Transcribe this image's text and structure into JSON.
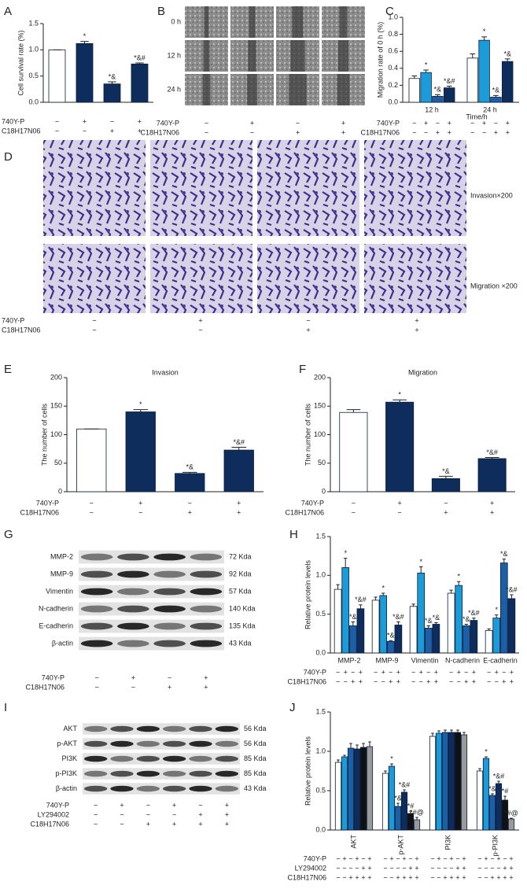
{
  "chart_data": [
    {
      "type": "bar",
      "panel": "A",
      "ylabel": "Cell survival rate (%)",
      "values": [
        1.0,
        1.12,
        0.35,
        0.73
      ],
      "errors": [
        0,
        0.04,
        0.04,
        0.02
      ],
      "colors": [
        "#ffffff",
        "#0e2d5c",
        "#0e2d5c",
        "#0e2d5c"
      ],
      "annotations": [
        null,
        "*",
        "*&",
        "*&#"
      ],
      "ylim": [
        0,
        1.5
      ],
      "yticks": [
        {
          "value": 0,
          "label": "0.0"
        },
        {
          "value": 0.5,
          "label": "0.5"
        },
        {
          "value": 1,
          "label": "1.0"
        },
        {
          "value": 1.5,
          "label": "1.5"
        }
      ],
      "conditions": [
        {
          "name": "740Y-P",
          "signs": [
            "−",
            "+",
            "−",
            "+"
          ]
        },
        {
          "name": "C18H17N06",
          "signs": [
            "−",
            "−",
            "+",
            "+"
          ]
        }
      ]
    },
    {
      "type": "bar",
      "panel": "C",
      "ylabel": "Migration rate of 0 h (%)",
      "xlabel": "Time/h",
      "categories": [
        "12 h",
        "24 h"
      ],
      "series": [
        {
          "color": "#ffffff",
          "values": [
            0.28,
            0.52
          ],
          "errors": [
            0.03,
            0.05
          ],
          "annotations": [
            null,
            null
          ]
        },
        {
          "color": "#1b9bd7",
          "values": [
            0.35,
            0.73
          ],
          "errors": [
            0.03,
            0.04
          ],
          "annotations": [
            "*",
            "*"
          ]
        },
        {
          "color": "#1d5fa6",
          "values": [
            0.07,
            0.06
          ],
          "errors": [
            0.02,
            0.02
          ],
          "annotations": [
            "*&",
            "*&"
          ]
        },
        {
          "color": "#0e2d5c",
          "values": [
            0.17,
            0.48
          ],
          "errors": [
            0.02,
            0.03
          ],
          "annotations": [
            "*&#",
            "*&"
          ]
        }
      ],
      "ylim": [
        0,
        1
      ],
      "yticks": [
        {
          "value": 0,
          "label": "0.0"
        },
        {
          "value": 0.2,
          "label": "0.2"
        },
        {
          "value": 0.4,
          "label": "0.4"
        },
        {
          "value": 0.6,
          "label": "0.6"
        },
        {
          "value": 0.8,
          "label": "0.8"
        },
        {
          "value": 1,
          "label": "1.0"
        }
      ],
      "conditions": [
        {
          "name": "740Y-P",
          "signs": [
            "−",
            "+",
            "−",
            "+",
            "−",
            "+",
            "−",
            "+"
          ]
        },
        {
          "name": "C18H17N06",
          "signs": [
            "−",
            "−",
            "+",
            "+",
            "−",
            "−",
            "+",
            "+"
          ]
        }
      ]
    },
    {
      "type": "bar",
      "panel": "E",
      "title": "Invasion",
      "ylabel": "The number of cells",
      "values": [
        110,
        140,
        32,
        73
      ],
      "errors": [
        0,
        4,
        2,
        5
      ],
      "colors": [
        "#ffffff",
        "#0e2d5c",
        "#0e2d5c",
        "#0e2d5c"
      ],
      "annotations": [
        null,
        "*",
        "*&",
        "*&#"
      ],
      "ylim": [
        0,
        200
      ],
      "yticks": [
        0,
        50,
        100,
        150,
        200
      ],
      "conditions": [
        {
          "name": "740Y-P",
          "signs": [
            "−",
            "+",
            "−",
            "+"
          ]
        },
        {
          "name": "C18H17N06",
          "signs": [
            "−",
            "−",
            "+",
            "+"
          ]
        }
      ]
    },
    {
      "type": "bar",
      "panel": "F",
      "title": "Migration",
      "ylabel": "The number of cells",
      "values": [
        139,
        157,
        23,
        58
      ],
      "errors": [
        5,
        4,
        4,
        2
      ],
      "colors": [
        "#ffffff",
        "#0e2d5c",
        "#0e2d5c",
        "#0e2d5c"
      ],
      "annotations": [
        null,
        "*",
        "*&",
        "*&#"
      ],
      "ylim": [
        0,
        200
      ],
      "yticks": [
        0,
        50,
        100,
        150,
        200
      ],
      "conditions": [
        {
          "name": "740Y-P",
          "signs": [
            "−",
            "+",
            "−",
            "+"
          ]
        },
        {
          "name": "C18H17N06",
          "signs": [
            "−",
            "−",
            "+",
            "+"
          ]
        }
      ]
    },
    {
      "type": "bar",
      "panel": "H",
      "ylabel": "Relative protein levels",
      "categories": [
        "MMP-2",
        "MMP-9",
        "Vimentin",
        "N-cadherin",
        "E-cadherin"
      ],
      "series": [
        {
          "color": "#ffffff",
          "values": [
            0.82,
            0.68,
            0.6,
            0.77,
            0.29
          ],
          "errors": [
            0.06,
            0.04,
            0.03,
            0.04,
            0.02
          ],
          "annotations": [
            null,
            null,
            null,
            null,
            null
          ]
        },
        {
          "color": "#1b9bd7",
          "values": [
            1.1,
            0.74,
            1.03,
            0.87,
            0.45
          ],
          "errors": [
            0.12,
            0.03,
            0.08,
            0.05,
            0.04
          ],
          "annotations": [
            "*",
            "*",
            "*",
            "*",
            "*"
          ]
        },
        {
          "color": "#1d5fa6",
          "values": [
            0.35,
            0.15,
            0.32,
            0.35,
            1.16
          ],
          "errors": [
            0.05,
            0.01,
            0.03,
            0.02,
            0.05
          ],
          "annotations": [
            "*&",
            "*&",
            "*&",
            "*&",
            "*&"
          ]
        },
        {
          "color": "#0e2d5c",
          "values": [
            0.57,
            0.36,
            0.37,
            0.42,
            0.7
          ],
          "errors": [
            0.05,
            0.04,
            0.02,
            0.03,
            0.05
          ],
          "annotations": [
            "*&#",
            "*&#",
            "*&",
            "*&#",
            "*&#"
          ]
        }
      ],
      "ylim": [
        0,
        1.5
      ],
      "yticks": [
        {
          "value": 0,
          "label": "0.0"
        },
        {
          "value": 0.5,
          "label": "0.5"
        },
        {
          "value": 1,
          "label": "1.0"
        },
        {
          "value": 1.5,
          "label": "1.5"
        }
      ],
      "conditions": [
        {
          "name": "740Y-P",
          "signs": [
            "−",
            "+",
            "−",
            "+",
            "−",
            "+",
            "−",
            "+",
            "−",
            "+",
            "−",
            "+",
            "−",
            "+",
            "−",
            "+",
            "−",
            "+",
            "−",
            "+"
          ]
        },
        {
          "name": "C18H17N06",
          "signs": [
            "−",
            "−",
            "+",
            "+",
            "−",
            "−",
            "+",
            "+",
            "−",
            "−",
            "+",
            "+",
            "−",
            "−",
            "+",
            "+",
            "−",
            "−",
            "+",
            "+"
          ]
        }
      ]
    },
    {
      "type": "bar",
      "panel": "J",
      "ylabel": "Relative protein levels",
      "rotate_categories": true,
      "categories": [
        "AKT",
        "p-AKT",
        "PI3K",
        "p-PI3K"
      ],
      "series": [
        {
          "color": "#ffffff",
          "values": [
            0.86,
            0.72,
            1.19,
            0.75
          ],
          "errors": [
            0.03,
            0.03,
            0.04,
            0.03
          ],
          "annotations": [
            null,
            null,
            null,
            null
          ]
        },
        {
          "color": "#1b9bd7",
          "values": [
            0.93,
            0.81,
            1.23,
            0.91
          ],
          "errors": [
            0.02,
            0.03,
            0.03,
            0.02
          ],
          "annotations": [
            null,
            "*",
            null,
            "*"
          ]
        },
        {
          "color": "#1d5fa6",
          "values": [
            1.04,
            0.3,
            1.24,
            0.44
          ],
          "errors": [
            0.06,
            0.04,
            0.03,
            0.02
          ],
          "annotations": [
            null,
            "*&",
            null,
            "*&"
          ]
        },
        {
          "color": "#0e2d5c",
          "values": [
            1.03,
            0.48,
            1.24,
            0.59
          ],
          "errors": [
            0.05,
            0.03,
            0.03,
            0.03
          ],
          "annotations": [
            null,
            "*&#",
            null,
            "*&#"
          ]
        },
        {
          "color": "#111111",
          "values": [
            1.05,
            0.21,
            1.24,
            0.38
          ],
          "errors": [
            0.05,
            0.03,
            0.03,
            0.05
          ],
          "annotations": [
            null,
            "*#",
            null,
            "*#"
          ]
        },
        {
          "color": "#9a9a9a",
          "values": [
            1.06,
            0.13,
            1.21,
            0.14
          ],
          "errors": [
            0.06,
            0.03,
            0.03,
            0.01
          ],
          "annotations": [
            null,
            "*#@",
            null,
            "*#@"
          ]
        }
      ],
      "ylim": [
        0,
        1.5
      ],
      "yticks": [
        {
          "value": 0,
          "label": "0.0"
        },
        {
          "value": 0.5,
          "label": "0.5"
        },
        {
          "value": 1,
          "label": "1.0"
        },
        {
          "value": 1.5,
          "label": "1.5"
        }
      ],
      "conditions": [
        {
          "name": "740Y-P",
          "signs": [
            "−",
            "+",
            "−",
            "+",
            "−",
            "+",
            "−",
            "+",
            "−",
            "+",
            "−",
            "+",
            "−",
            "+",
            "−",
            "+",
            "−",
            "+",
            "−",
            "+",
            "−",
            "+",
            "−",
            "+"
          ]
        },
        {
          "name": "LY294002",
          "signs": [
            "−",
            "−",
            "−",
            "−",
            "+",
            "+",
            "−",
            "−",
            "−",
            "−",
            "+",
            "+",
            "−",
            "−",
            "−",
            "−",
            "+",
            "+",
            "−",
            "−",
            "−",
            "−",
            "+",
            "+"
          ]
        },
        {
          "name": "C18H17N06",
          "signs": [
            "−",
            "−",
            "+",
            "+",
            "+",
            "+",
            "−",
            "−",
            "+",
            "+",
            "+",
            "+",
            "−",
            "−",
            "+",
            "+",
            "+",
            "+",
            "−",
            "−",
            "+",
            "+",
            "+",
            "+"
          ]
        }
      ]
    }
  ],
  "panel_b": {
    "label": "B",
    "rows": [
      "0 h",
      "12 h",
      "24 h"
    ],
    "conditions": [
      {
        "name": "740Y-P",
        "signs": [
          "−",
          "+",
          "−",
          "+"
        ]
      },
      {
        "name": "C18H17N06",
        "signs": [
          "−",
          "−",
          "+",
          "+"
        ]
      }
    ]
  },
  "panel_d": {
    "label": "D",
    "rows": [
      "Invasion×200",
      "Migration ×200"
    ],
    "conditions": [
      {
        "name": "740Y-P",
        "signs": [
          "−",
          "+",
          "−",
          "+"
        ]
      },
      {
        "name": "C18H17N06",
        "signs": [
          "−",
          "−",
          "+",
          "+"
        ]
      }
    ]
  },
  "panel_g": {
    "label": "G",
    "proteins": [
      "MMP-2",
      "MMP-9",
      "Vimentin",
      "N-cadherin",
      "E-cadherin",
      "β-actin"
    ],
    "sizes": [
      "72 Kda",
      "92 Kda",
      "57 Kda",
      "140 Kda",
      "135 Kda",
      "43 Kda"
    ],
    "conditions": [
      {
        "name": "740Y-P",
        "signs": [
          "−",
          "+",
          "−",
          "+"
        ]
      },
      {
        "name": "C18H17N06",
        "signs": [
          "−",
          "−",
          "+",
          "+"
        ]
      }
    ]
  },
  "panel_i": {
    "label": "I",
    "proteins": [
      "AKT",
      "p-AKT",
      "PI3K",
      "p-PI3K",
      "β-actin"
    ],
    "sizes": [
      "56 Kda",
      "56 Kda",
      "85 Kda",
      "85 Kda",
      "43 Kda"
    ],
    "conditions": [
      {
        "name": "740Y-P",
        "signs": [
          "−",
          "+",
          "−",
          "+",
          "−",
          "+"
        ]
      },
      {
        "name": "LY294002",
        "signs": [
          "−",
          "−",
          "−",
          "−",
          "+",
          "+"
        ]
      },
      {
        "name": "C18H17N06",
        "signs": [
          "−",
          "−",
          "+",
          "+",
          "+",
          "+"
        ]
      }
    ]
  }
}
